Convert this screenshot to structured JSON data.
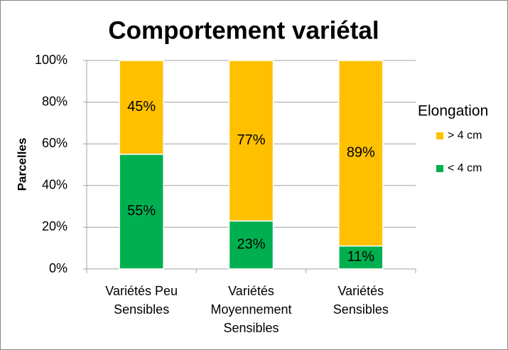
{
  "chart_data": {
    "type": "stacked_bar",
    "title": "Comportement variétal",
    "y_label": "Parcelles",
    "categories": [
      "Variétés Peu Sensibles",
      "Variétés Moyennement Sensibles",
      "Variétés Sensibles"
    ],
    "series": [
      {
        "name": "< 4 cm",
        "color": "#00b050",
        "values": [
          55,
          23,
          11
        ],
        "value_labels": [
          "55%",
          "23%",
          "11%"
        ]
      },
      {
        "name": "> 4 cm",
        "color": "#ffc000",
        "values": [
          45,
          77,
          89
        ],
        "value_labels": [
          "45%",
          "77%",
          "89%"
        ]
      }
    ],
    "legend_title": "Elongation",
    "ylim": [
      0,
      100
    ],
    "yticks": [
      {
        "value": 0,
        "label": "0%"
      },
      {
        "value": 20,
        "label": "20%"
      },
      {
        "value": 40,
        "label": "40%"
      },
      {
        "value": 60,
        "label": "60%"
      },
      {
        "value": 80,
        "label": "80%"
      },
      {
        "value": 100,
        "label": "100%"
      }
    ],
    "grid": true,
    "legend": "right"
  }
}
